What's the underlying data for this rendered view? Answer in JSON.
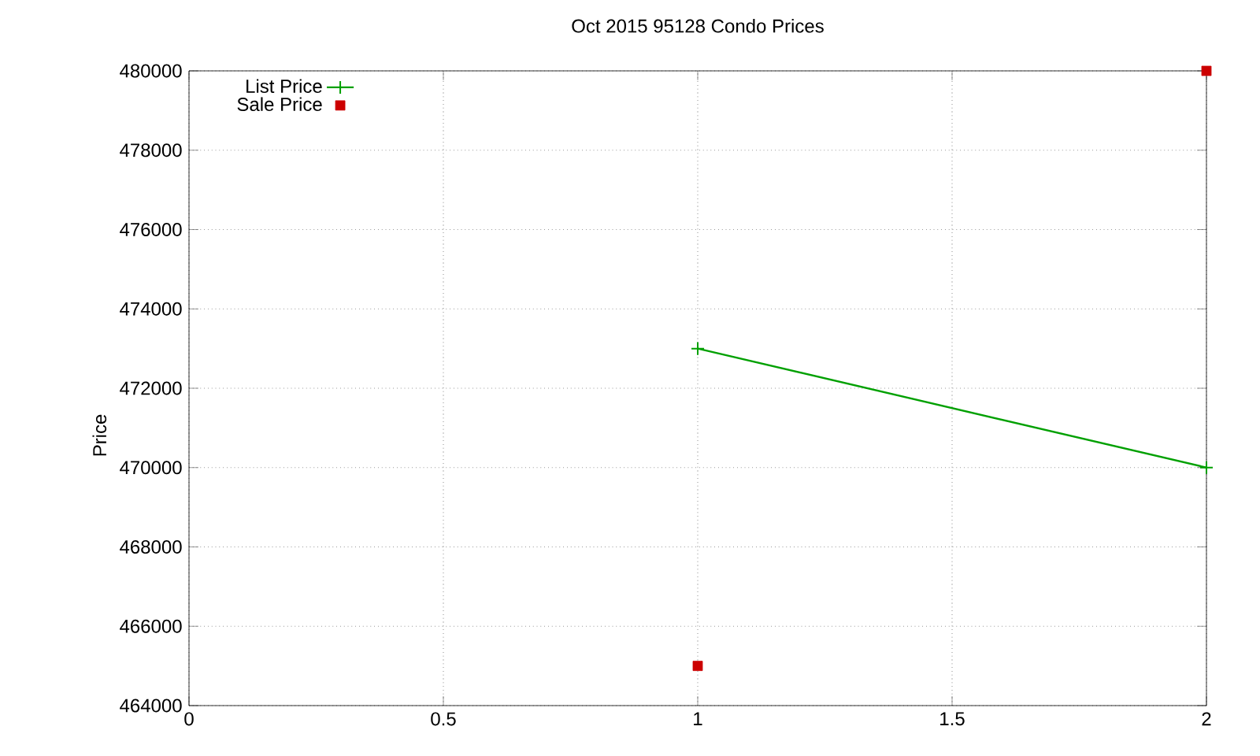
{
  "chart_data": {
    "type": "line",
    "title": "Oct 2015 95128 Condo Prices",
    "ylabel": "Price",
    "x": [
      1,
      2
    ],
    "xlim": [
      0,
      2
    ],
    "xticks": [
      0,
      0.5,
      1,
      1.5,
      2
    ],
    "ylim": [
      464000,
      480000
    ],
    "yticks": [
      464000,
      466000,
      468000,
      470000,
      472000,
      474000,
      476000,
      478000,
      480000
    ],
    "grid": true,
    "legend": "top left",
    "series": [
      {
        "name": "List Price",
        "marker": "cross",
        "color": "#00a000",
        "values": [
          473000,
          470000
        ]
      },
      {
        "name": "Sale Price",
        "type": "scatter",
        "marker": "square",
        "color": "#cc0000",
        "values": [
          465000,
          480000
        ]
      }
    ]
  }
}
